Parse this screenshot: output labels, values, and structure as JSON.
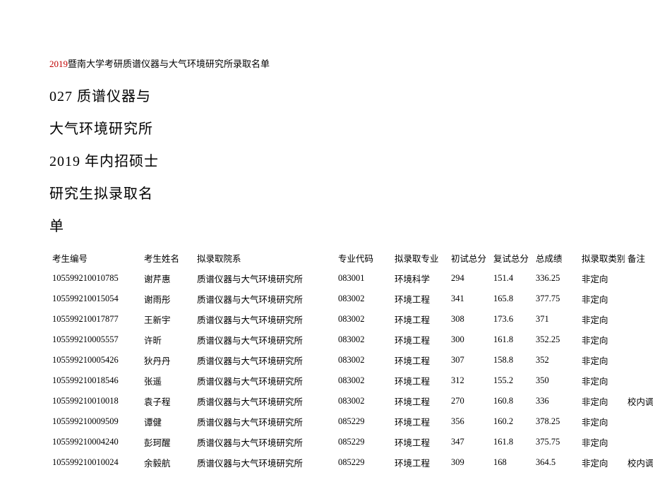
{
  "header": {
    "year_prefix": "2019",
    "header_rest": "暨南大学考研质谱仪器与大气环境研究所录取名单"
  },
  "subtitle": {
    "line1": "027 质谱仪器与",
    "line2": "大气环境研究所",
    "line3": "2019 年内招硕士",
    "line4": "研究生拟录取名",
    "line5": "单"
  },
  "table": {
    "columns": {
      "id": "考生编号",
      "name": "考生姓名",
      "dept": "拟录取院系",
      "majorcode": "专业代码",
      "major": "拟录取专业",
      "score1": "初试总分",
      "score2": "复试总分",
      "total": "总成绩",
      "type": "拟录取类别",
      "note": "备注"
    },
    "rows": [
      {
        "id": "105599210010785",
        "name": "谢芹惠",
        "dept": "质谱仪器与大气环境研究所",
        "majorcode": "083001",
        "major": "环境科学",
        "score1": "294",
        "score2": "151.4",
        "total": "336.25",
        "type": "非定向",
        "note": ""
      },
      {
        "id": "105599210015054",
        "name": "谢雨彤",
        "dept": "质谱仪器与大气环境研究所",
        "majorcode": "083002",
        "major": "环境工程",
        "score1": "341",
        "score2": "165.8",
        "total": "377.75",
        "type": "非定向",
        "note": ""
      },
      {
        "id": "105599210017877",
        "name": "王新宇",
        "dept": "质谱仪器与大气环境研究所",
        "majorcode": "083002",
        "major": "环境工程",
        "score1": "308",
        "score2": "173.6",
        "total": "371",
        "type": "非定向",
        "note": ""
      },
      {
        "id": "105599210005557",
        "name": "许昕",
        "dept": "质谱仪器与大气环境研究所",
        "majorcode": "083002",
        "major": "环境工程",
        "score1": "300",
        "score2": "161.8",
        "total": "352.25",
        "type": "非定向",
        "note": ""
      },
      {
        "id": "105599210005426",
        "name": "狄丹丹",
        "dept": "质谱仪器与大气环境研究所",
        "majorcode": "083002",
        "major": "环境工程",
        "score1": "307",
        "score2": "158.8",
        "total": "352",
        "type": "非定向",
        "note": ""
      },
      {
        "id": "105599210018546",
        "name": "张遥",
        "dept": "质谱仪器与大气环境研究所",
        "majorcode": "083002",
        "major": "环境工程",
        "score1": "312",
        "score2": "155.2",
        "total": "350",
        "type": "非定向",
        "note": ""
      },
      {
        "id": "105599210010018",
        "name": "袁子程",
        "dept": "质谱仪器与大气环境研究所",
        "majorcode": "083002",
        "major": "环境工程",
        "score1": "270",
        "score2": "160.8",
        "total": "336",
        "type": "非定向",
        "note": "校内调"
      },
      {
        "id": "105599210009509",
        "name": "谭健",
        "dept": "质谱仪器与大气环境研究所",
        "majorcode": "085229",
        "major": "环境工程",
        "score1": "356",
        "score2": "160.2",
        "total": "378.25",
        "type": "非定向",
        "note": ""
      },
      {
        "id": "105599210004240",
        "name": "彭珂醒",
        "dept": "质谱仪器与大气环境研究所",
        "majorcode": "085229",
        "major": "环境工程",
        "score1": "347",
        "score2": "161.8",
        "total": "375.75",
        "type": "非定向",
        "note": ""
      },
      {
        "id": "105599210010024",
        "name": "余毅航",
        "dept": "质谱仪器与大气环境研究所",
        "majorcode": "085229",
        "major": "环境工程",
        "score1": "309",
        "score2": "168",
        "total": "364.5",
        "type": "非定向",
        "note": "校内调"
      }
    ]
  }
}
